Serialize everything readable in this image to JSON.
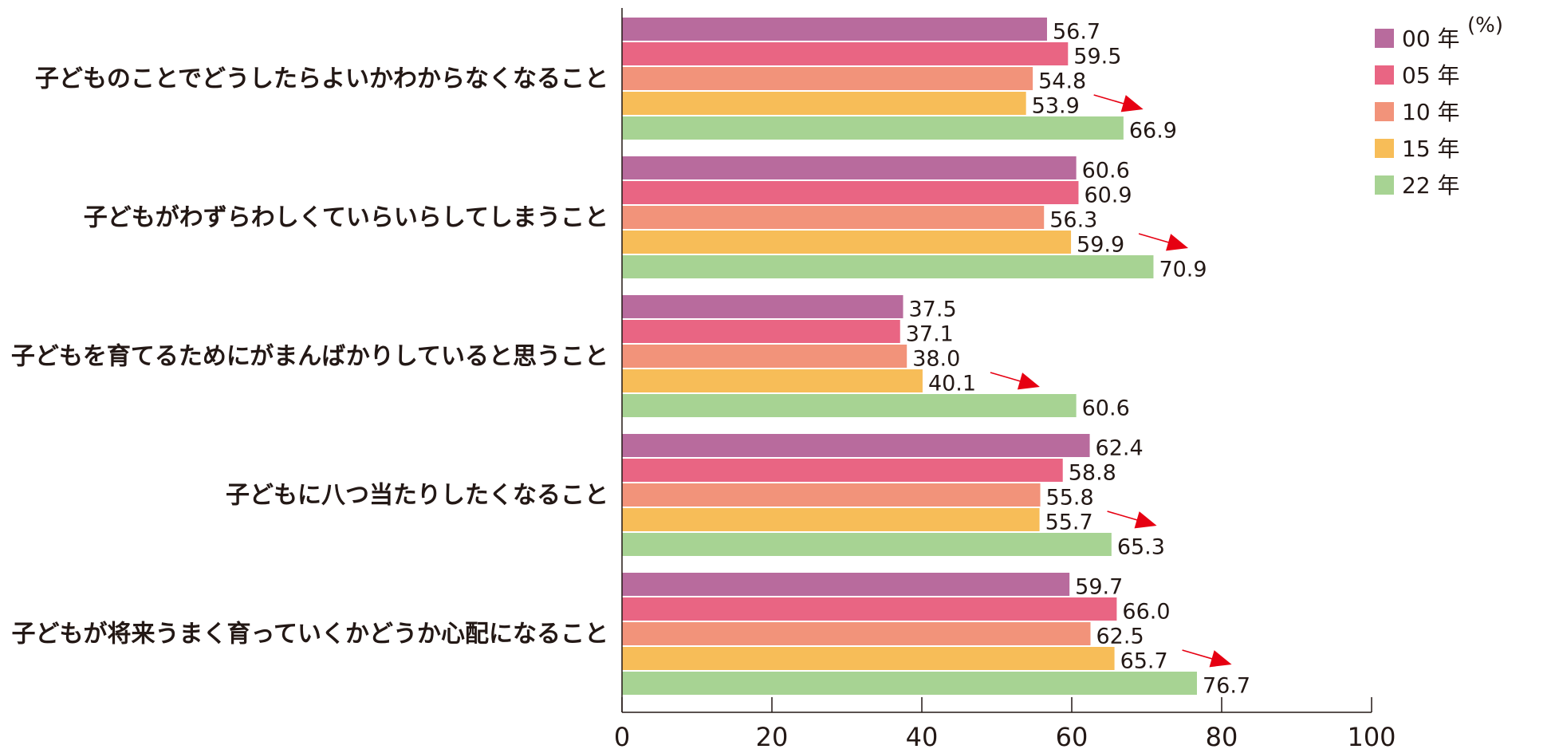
{
  "chart_data": {
    "type": "bar",
    "orientation": "horizontal",
    "unit": "(%)",
    "categories": [
      "子どものことでどうしたらよいかわからなくなること",
      "子どもがわずらわしくていらいらしてしまうこと",
      "子どもを育てるためにがまんばかりしていると思うこと",
      "子どもに八つ当たりしたくなること",
      "子どもが将来うまく育っていくかどうか心配になること"
    ],
    "series": [
      {
        "name": "00 年",
        "color": "#b86b9d",
        "values": [
          56.7,
          60.6,
          37.5,
          62.4,
          59.7
        ]
      },
      {
        "name": "05 年",
        "color": "#e96583",
        "values": [
          59.5,
          60.9,
          37.1,
          58.8,
          66.0
        ]
      },
      {
        "name": "10 年",
        "color": "#f2937a",
        "values": [
          54.8,
          56.3,
          38.0,
          55.8,
          62.5
        ]
      },
      {
        "name": "15 年",
        "color": "#f7bd58",
        "values": [
          53.9,
          59.9,
          40.1,
          55.7,
          65.7
        ]
      },
      {
        "name": "22 年",
        "color": "#a7d393",
        "values": [
          66.9,
          70.9,
          60.6,
          65.3,
          76.7
        ]
      }
    ],
    "xlim": [
      0,
      100
    ],
    "xticks": [
      "0",
      "20",
      "40",
      "60",
      "80",
      "100"
    ],
    "value_labels": [
      [
        "56.7",
        "59.5",
        "54.8",
        "53.9",
        "66.9"
      ],
      [
        "60.6",
        "60.9",
        "56.3",
        "59.9",
        "70.9"
      ],
      [
        "37.5",
        "37.1",
        "38.0",
        "40.1",
        "60.6"
      ],
      [
        "62.4",
        "58.8",
        "55.8",
        "55.7",
        "65.3"
      ],
      [
        "59.7",
        "66.0",
        "62.5",
        "65.7",
        "76.7"
      ]
    ],
    "legend_position": "top-right",
    "arrow_color": "#e60012",
    "annotations": "red arrows from 15年 to 22年 in each group"
  }
}
